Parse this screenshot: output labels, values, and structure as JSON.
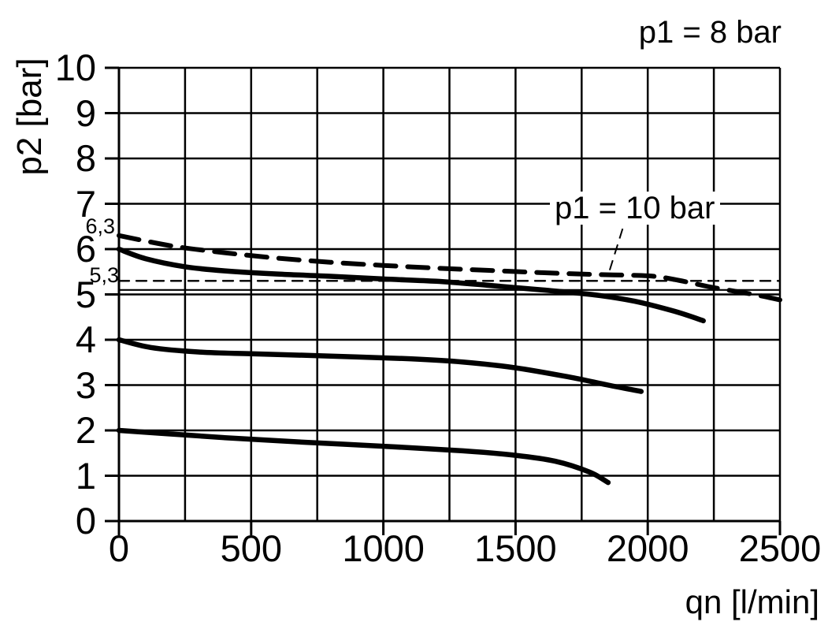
{
  "colors": {
    "foreground": "#000000",
    "background": "#ffffff"
  },
  "chart_data": {
    "type": "line",
    "xlabel": "qn [l/min]",
    "ylabel": "p2 [bar]",
    "xlim": [
      0,
      2500
    ],
    "ylim": [
      0,
      10
    ],
    "grid": true,
    "x_grid_step": 250,
    "y_grid_step": 1,
    "x_ticks": [
      0,
      500,
      1000,
      1500,
      2000,
      2500
    ],
    "y_ticks": [
      0,
      1,
      2,
      3,
      4,
      5,
      6,
      7,
      8,
      9,
      10
    ],
    "series": [
      {
        "id": "p1-10-bar-dashed",
        "label": "p1 = 10 bar",
        "style": "dashed-thick",
        "points": [
          [
            0,
            6.3
          ],
          [
            200,
            6.07
          ],
          [
            400,
            5.92
          ],
          [
            600,
            5.8
          ],
          [
            800,
            5.71
          ],
          [
            1000,
            5.64
          ],
          [
            1200,
            5.58
          ],
          [
            1400,
            5.53
          ],
          [
            1600,
            5.48
          ],
          [
            1800,
            5.44
          ],
          [
            2000,
            5.41
          ],
          [
            2100,
            5.33
          ],
          [
            2250,
            5.15
          ],
          [
            2400,
            5.0
          ],
          [
            2500,
            4.88
          ]
        ]
      },
      {
        "id": "p1-8-bar-set-6",
        "label": "p1 = 8 bar",
        "style": "solid-thick",
        "points": [
          [
            0,
            6.0
          ],
          [
            100,
            5.79
          ],
          [
            250,
            5.61
          ],
          [
            400,
            5.52
          ],
          [
            600,
            5.45
          ],
          [
            800,
            5.4
          ],
          [
            1000,
            5.34
          ],
          [
            1200,
            5.29
          ],
          [
            1400,
            5.2
          ],
          [
            1600,
            5.1
          ],
          [
            1800,
            4.99
          ],
          [
            1950,
            4.85
          ],
          [
            2100,
            4.63
          ],
          [
            2210,
            4.42
          ]
        ]
      },
      {
        "id": "p1-8-bar-set-4",
        "style": "solid-thick",
        "points": [
          [
            0,
            4.0
          ],
          [
            120,
            3.83
          ],
          [
            300,
            3.73
          ],
          [
            500,
            3.69
          ],
          [
            800,
            3.64
          ],
          [
            1100,
            3.58
          ],
          [
            1300,
            3.51
          ],
          [
            1500,
            3.38
          ],
          [
            1700,
            3.18
          ],
          [
            1850,
            3.0
          ],
          [
            1975,
            2.86
          ]
        ]
      },
      {
        "id": "p1-8-bar-set-2",
        "style": "solid-thick",
        "points": [
          [
            0,
            2.0
          ],
          [
            150,
            1.94
          ],
          [
            400,
            1.84
          ],
          [
            700,
            1.74
          ],
          [
            1000,
            1.65
          ],
          [
            1300,
            1.55
          ],
          [
            1500,
            1.45
          ],
          [
            1650,
            1.32
          ],
          [
            1780,
            1.08
          ],
          [
            1850,
            0.85
          ]
        ]
      },
      {
        "id": "ref-line-5-3",
        "style": "dashed-thin",
        "points": [
          [
            0,
            5.3
          ],
          [
            2500,
            5.3
          ]
        ]
      },
      {
        "id": "ref-line-5-1",
        "style": "solid-thin",
        "points": [
          [
            0,
            5.1
          ],
          [
            2500,
            5.1
          ]
        ]
      }
    ],
    "annotations": {
      "p1_8": {
        "text": "p1 = 8 bar"
      },
      "p1_10": {
        "text": "p1 = 10 bar",
        "leader_from": [
          1905,
          6.45
        ],
        "leader_to": [
          1852,
          5.46
        ]
      },
      "y_6_3": {
        "text": "6,3",
        "value": 6.3
      },
      "y_5_3": {
        "text": "5,3",
        "value": 5.3
      }
    }
  }
}
